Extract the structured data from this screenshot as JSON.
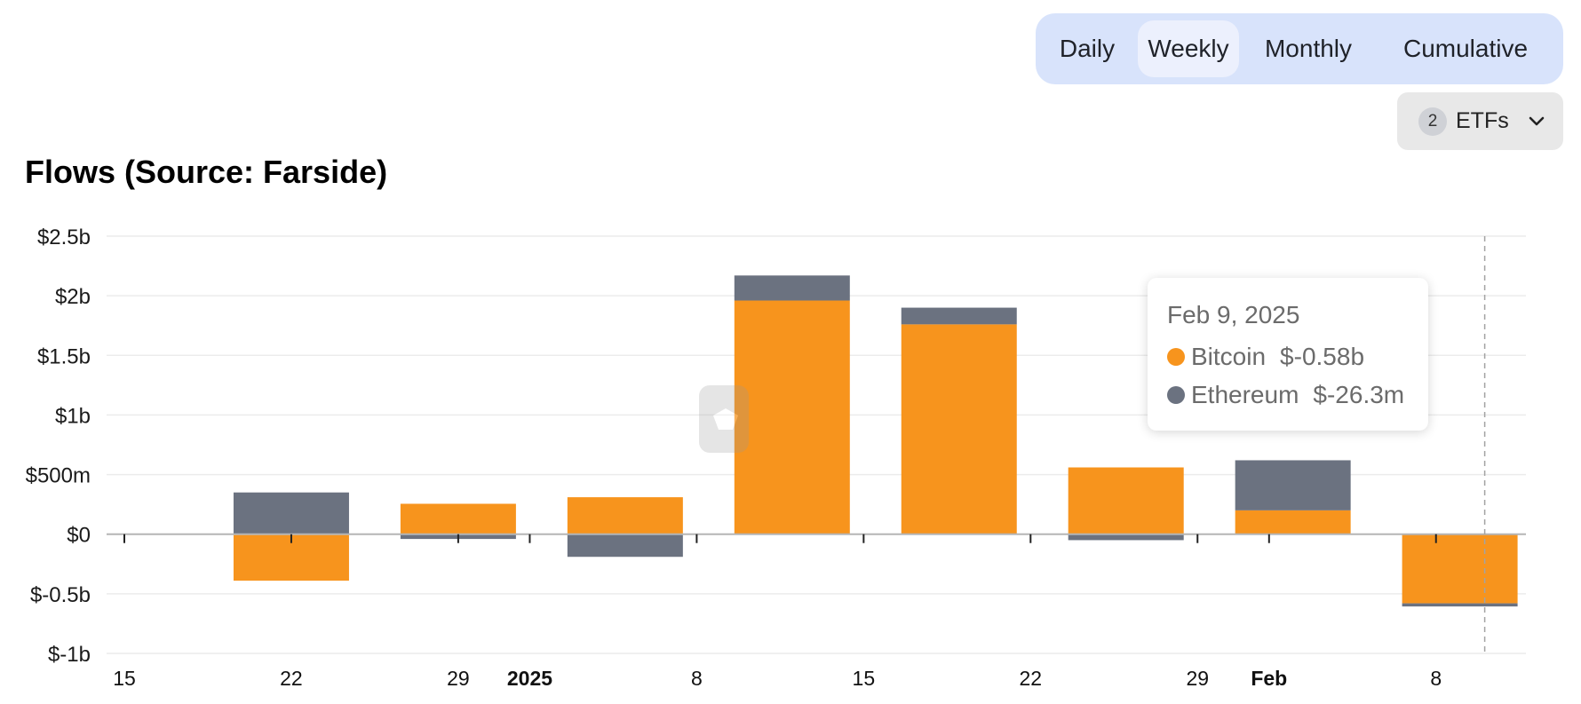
{
  "tabs": [
    {
      "label": "Daily",
      "active": false
    },
    {
      "label": "Weekly",
      "active": true
    },
    {
      "label": "Monthly",
      "active": false
    },
    {
      "label": "Cumulative",
      "active": false
    }
  ],
  "etf_selector": {
    "count": "2",
    "label": "ETFs",
    "icon": "chevron-down-icon"
  },
  "title": "Flows (Source: Farside)",
  "tooltip": {
    "date": "Feb 9, 2025",
    "rows": [
      {
        "name": "Bitcoin",
        "value": "$-0.58b"
      },
      {
        "name": "Ethereum",
        "value": "$-26.3m"
      }
    ]
  },
  "colors": {
    "bitcoin": "#f7941d",
    "ethereum": "#6b7280",
    "active_tab": "#ecf0fd",
    "tab_bar": "#d8e3fb"
  },
  "chart_data": {
    "type": "bar",
    "stacked": true,
    "title": "Flows (Source: Farside)",
    "x_ticks": [
      {
        "label": "15",
        "bold": false,
        "date": "2024-12-15"
      },
      {
        "label": "22",
        "bold": false,
        "date": "2024-12-22"
      },
      {
        "label": "29",
        "bold": false,
        "date": "2024-12-29"
      },
      {
        "label": "2025",
        "bold": true,
        "date": "2025-01-01"
      },
      {
        "label": "8",
        "bold": false,
        "date": "2025-01-08"
      },
      {
        "label": "15",
        "bold": false,
        "date": "2025-01-15"
      },
      {
        "label": "22",
        "bold": false,
        "date": "2025-01-22"
      },
      {
        "label": "29",
        "bold": false,
        "date": "2025-01-29"
      },
      {
        "label": "Feb",
        "bold": true,
        "date": "2025-02-01"
      },
      {
        "label": "8",
        "bold": false,
        "date": "2025-02-08"
      }
    ],
    "y_ticks": [
      {
        "label": "$2.5b",
        "value": 2500
      },
      {
        "label": "$2b",
        "value": 2000
      },
      {
        "label": "$1.5b",
        "value": 1500
      },
      {
        "label": "$1b",
        "value": 1000
      },
      {
        "label": "$500m",
        "value": 500
      },
      {
        "label": "$0",
        "value": 0
      },
      {
        "label": "$-0.5b",
        "value": -500
      },
      {
        "label": "$-1b",
        "value": -1000
      }
    ],
    "ylim": [
      -1000,
      2500
    ],
    "y_unit": "millions USD",
    "x": [
      "2024-12-22",
      "2024-12-29",
      "2025-01-05",
      "2025-01-12",
      "2025-01-19",
      "2025-01-26",
      "2025-02-02",
      "2025-02-09"
    ],
    "series": [
      {
        "name": "Bitcoin",
        "color": "#f7941d",
        "values": [
          -390,
          255,
          310,
          1960,
          1760,
          560,
          200,
          -580
        ]
      },
      {
        "name": "Ethereum",
        "color": "#6b7280",
        "values": [
          350,
          -40,
          -190,
          210,
          140,
          -50,
          420,
          -26.3
        ]
      }
    ],
    "hover_date": "2025-02-09"
  }
}
